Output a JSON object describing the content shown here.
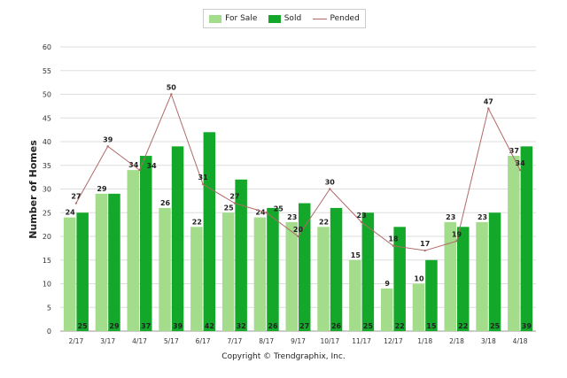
{
  "chart_data": {
    "type": "bar",
    "xlabel": "",
    "ylabel": "Number of Homes",
    "ylim": [
      0,
      60
    ],
    "yticks": [
      0,
      5,
      10,
      15,
      20,
      25,
      30,
      35,
      40,
      45,
      50,
      55,
      60
    ],
    "grid": true,
    "legend": "top",
    "categories": [
      "2/17",
      "3/17",
      "4/17",
      "5/17",
      "6/17",
      "7/17",
      "8/17",
      "9/17",
      "10/17",
      "11/17",
      "12/17",
      "1/18",
      "2/18",
      "3/18",
      "4/18"
    ],
    "series": [
      {
        "name": "For Sale",
        "kind": "bar",
        "color": "#a3dd8c",
        "values": [
          24,
          29,
          34,
          26,
          22,
          25,
          24,
          23,
          22,
          15,
          9,
          10,
          23,
          23,
          37
        ]
      },
      {
        "name": "Sold",
        "kind": "bar",
        "color": "#14a82a",
        "values": [
          25,
          29,
          37,
          39,
          42,
          32,
          26,
          27,
          26,
          25,
          22,
          15,
          22,
          25,
          39
        ]
      },
      {
        "name": "Pended",
        "kind": "line",
        "color": "#b06a6a",
        "values": [
          27,
          39,
          34,
          50,
          31,
          27,
          25,
          20,
          30,
          23,
          18,
          17,
          19,
          47,
          34
        ]
      }
    ]
  },
  "footer": {
    "copyright": "Copyright © Trendgraphix, Inc."
  }
}
